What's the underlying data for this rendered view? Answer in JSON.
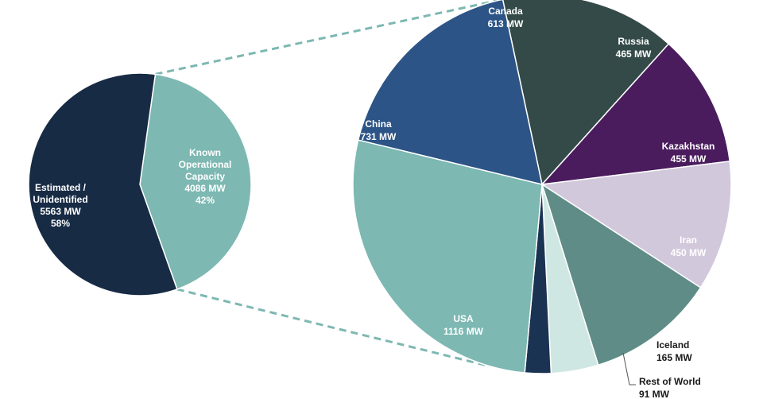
{
  "chart_data": [
    {
      "type": "pie",
      "title": "",
      "slices": [
        {
          "name": "Known Operational Capacity",
          "lines": [
            "Known",
            "Operational",
            "Capacity"
          ],
          "value_label": "4086 MW",
          "percent_label": "42%",
          "value": 4086,
          "percent": 42,
          "color": "#7db8b2",
          "text_color": "#ffffff"
        },
        {
          "name": "Estimated / Unidentified",
          "lines": [
            "Estimated /",
            "Unidentified"
          ],
          "value_label": "5563 MW",
          "percent_label": "58%",
          "value": 5563,
          "percent": 58,
          "color": "#172b45",
          "text_color": "#ffffff"
        }
      ]
    },
    {
      "type": "pie",
      "title": "",
      "slices": [
        {
          "name": "Canada",
          "value_label": "613 MW",
          "value": 613,
          "color": "#344a48",
          "text_color": "#ffffff"
        },
        {
          "name": "Russia",
          "value_label": "465 MW",
          "value": 465,
          "color": "#4a1c5e",
          "text_color": "#ffffff"
        },
        {
          "name": "Kazakhstan",
          "value_label": "455 MW",
          "value": 455,
          "color": "#d2c8dc",
          "text_color": "#ffffff"
        },
        {
          "name": "Iran",
          "value_label": "450 MW",
          "value": 450,
          "color": "#5f8c86",
          "text_color": "#ffffff"
        },
        {
          "name": "Iceland",
          "value_label": "165 MW",
          "value": 165,
          "color": "#cfe7e3",
          "text_color": "#1a1a1a"
        },
        {
          "name": "Rest of World",
          "value_label": "91 MW",
          "value": 91,
          "color": "#1b3352",
          "text_color": "#1a1a1a"
        },
        {
          "name": "USA",
          "value_label": "1116 MW",
          "value": 1116,
          "color": "#7db8b2",
          "text_color": "#ffffff"
        },
        {
          "name": "China",
          "value_label": "731 MW",
          "value": 731,
          "color": "#2c5486",
          "text_color": "#ffffff"
        }
      ]
    }
  ],
  "colors": {
    "connector": "#7db8b2",
    "slice_border": "#ffffff"
  }
}
